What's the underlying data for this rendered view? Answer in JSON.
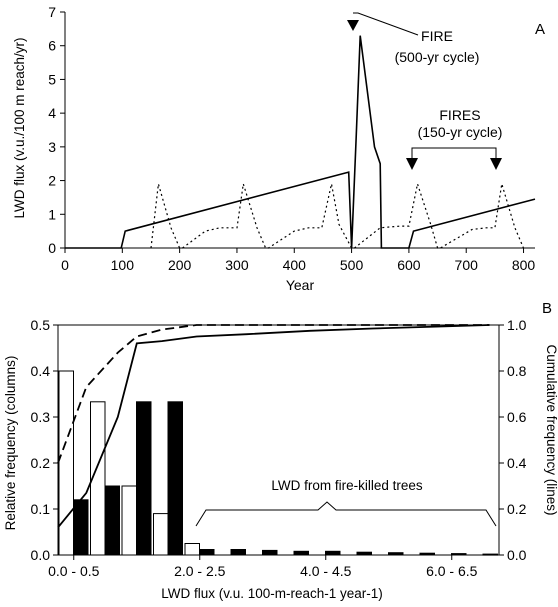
{
  "chart_data": [
    {
      "panel": "A",
      "type": "line",
      "xlabel": "Year",
      "ylabel": "LWD flux (v.u./100 m reach/yr)",
      "xlim": [
        0,
        820
      ],
      "ylim": [
        0,
        7
      ],
      "xticks": [
        "0",
        "100",
        "200",
        "300",
        "400",
        "500",
        "600",
        "700",
        "800"
      ],
      "yticks": [
        "0",
        "1",
        "2",
        "3",
        "4",
        "5",
        "6",
        "7"
      ],
      "grid": false,
      "series": [
        {
          "style": "solid",
          "x": [
            0,
            98,
            105,
            495,
            500,
            508,
            515,
            540,
            550,
            552,
            600,
            608,
            820
          ],
          "y": [
            0,
            0,
            0.5,
            2.25,
            0,
            3.3,
            6.3,
            3.0,
            2.5,
            0,
            0,
            0.5,
            1.45
          ]
        },
        {
          "style": "dotted",
          "x": [
            150,
            163,
            185,
            200,
            205,
            245,
            270,
            300,
            311,
            335,
            350,
            355,
            400,
            425,
            448,
            465,
            478,
            500,
            505,
            550,
            585,
            600,
            615,
            638,
            650,
            655,
            710,
            735,
            750,
            762,
            785,
            800
          ],
          "y": [
            0,
            1.9,
            0.6,
            0,
            0,
            0.5,
            0.6,
            0.6,
            1.9,
            0.6,
            0,
            0,
            0.5,
            0.6,
            0.6,
            1.9,
            0.7,
            0,
            0,
            0.6,
            0.65,
            0.65,
            1.9,
            0.7,
            0,
            0,
            0.55,
            0.6,
            0.6,
            1.9,
            0.6,
            0
          ]
        }
      ],
      "annotations": [
        {
          "label": "FIRE",
          "sublabel": "(500-yr cycle)",
          "x": [
            500
          ]
        },
        {
          "label": "FIRES",
          "sublabel": "(150-yr cycle)",
          "x": [
            600,
            750
          ]
        }
      ]
    },
    {
      "panel": "B",
      "type": "bar",
      "xlabel": "LWD flux (v.u. 100-m-reach-1 year-1)",
      "ylabel": "Relative frequency (columns)",
      "y2label": "Cumulative frequency (lines)",
      "ylim": [
        0,
        0.5
      ],
      "y2lim": [
        0,
        1.0
      ],
      "yticks": [
        "0.0",
        "0.1",
        "0.2",
        "0.3",
        "0.4",
        "0.5"
      ],
      "y2ticks": [
        "0.0",
        "0.2",
        "0.4",
        "0.6",
        "0.8",
        "1.0"
      ],
      "xticklabels": [
        {
          "label": "0.0 - 0.5",
          "bin": 0
        },
        {
          "label": "2.0 - 2.5",
          "bin": 4
        },
        {
          "label": "4.0 - 4.5",
          "bin": 8
        },
        {
          "label": "6.0 - 6.5",
          "bin": 12
        }
      ],
      "bin_count": 14,
      "series": [
        {
          "style": "open-bar",
          "values": [
            0.4,
            0.333,
            0.15,
            0.09,
            0.025,
            0,
            0,
            0,
            0,
            0,
            0,
            0,
            0,
            0
          ]
        },
        {
          "style": "filled-bar",
          "values": [
            0.12,
            0.15,
            0.333,
            0.333,
            0.012,
            0.012,
            0.01,
            0.008,
            0.008,
            0.006,
            0.005,
            0.004,
            0.003,
            0.002
          ]
        },
        {
          "style": "dashed-line",
          "x": [
            0,
            0.9,
            1.9,
            2.5,
            3.3,
            4.4,
            6.0,
            8.0,
            10.0,
            12.0,
            13.7
          ],
          "y": [
            0.4,
            0.73,
            0.88,
            0.95,
            0.98,
            1.0,
            1.0,
            1.0,
            1.0,
            1.0,
            1.0
          ]
        },
        {
          "style": "solid-line",
          "x": [
            0,
            0.9,
            1.9,
            2.5,
            3.3,
            4.4,
            6.0,
            8.0,
            10.0,
            12.0,
            13.7
          ],
          "y": [
            0.12,
            0.27,
            0.6,
            0.92,
            0.93,
            0.95,
            0.96,
            0.975,
            0.985,
            0.993,
            1.0
          ]
        }
      ],
      "annotations": [
        {
          "label": "LWD from fire-killed trees",
          "bin_range": [
            4,
            13
          ]
        }
      ]
    }
  ],
  "panel_labels": {
    "a": "A",
    "b": "B"
  }
}
